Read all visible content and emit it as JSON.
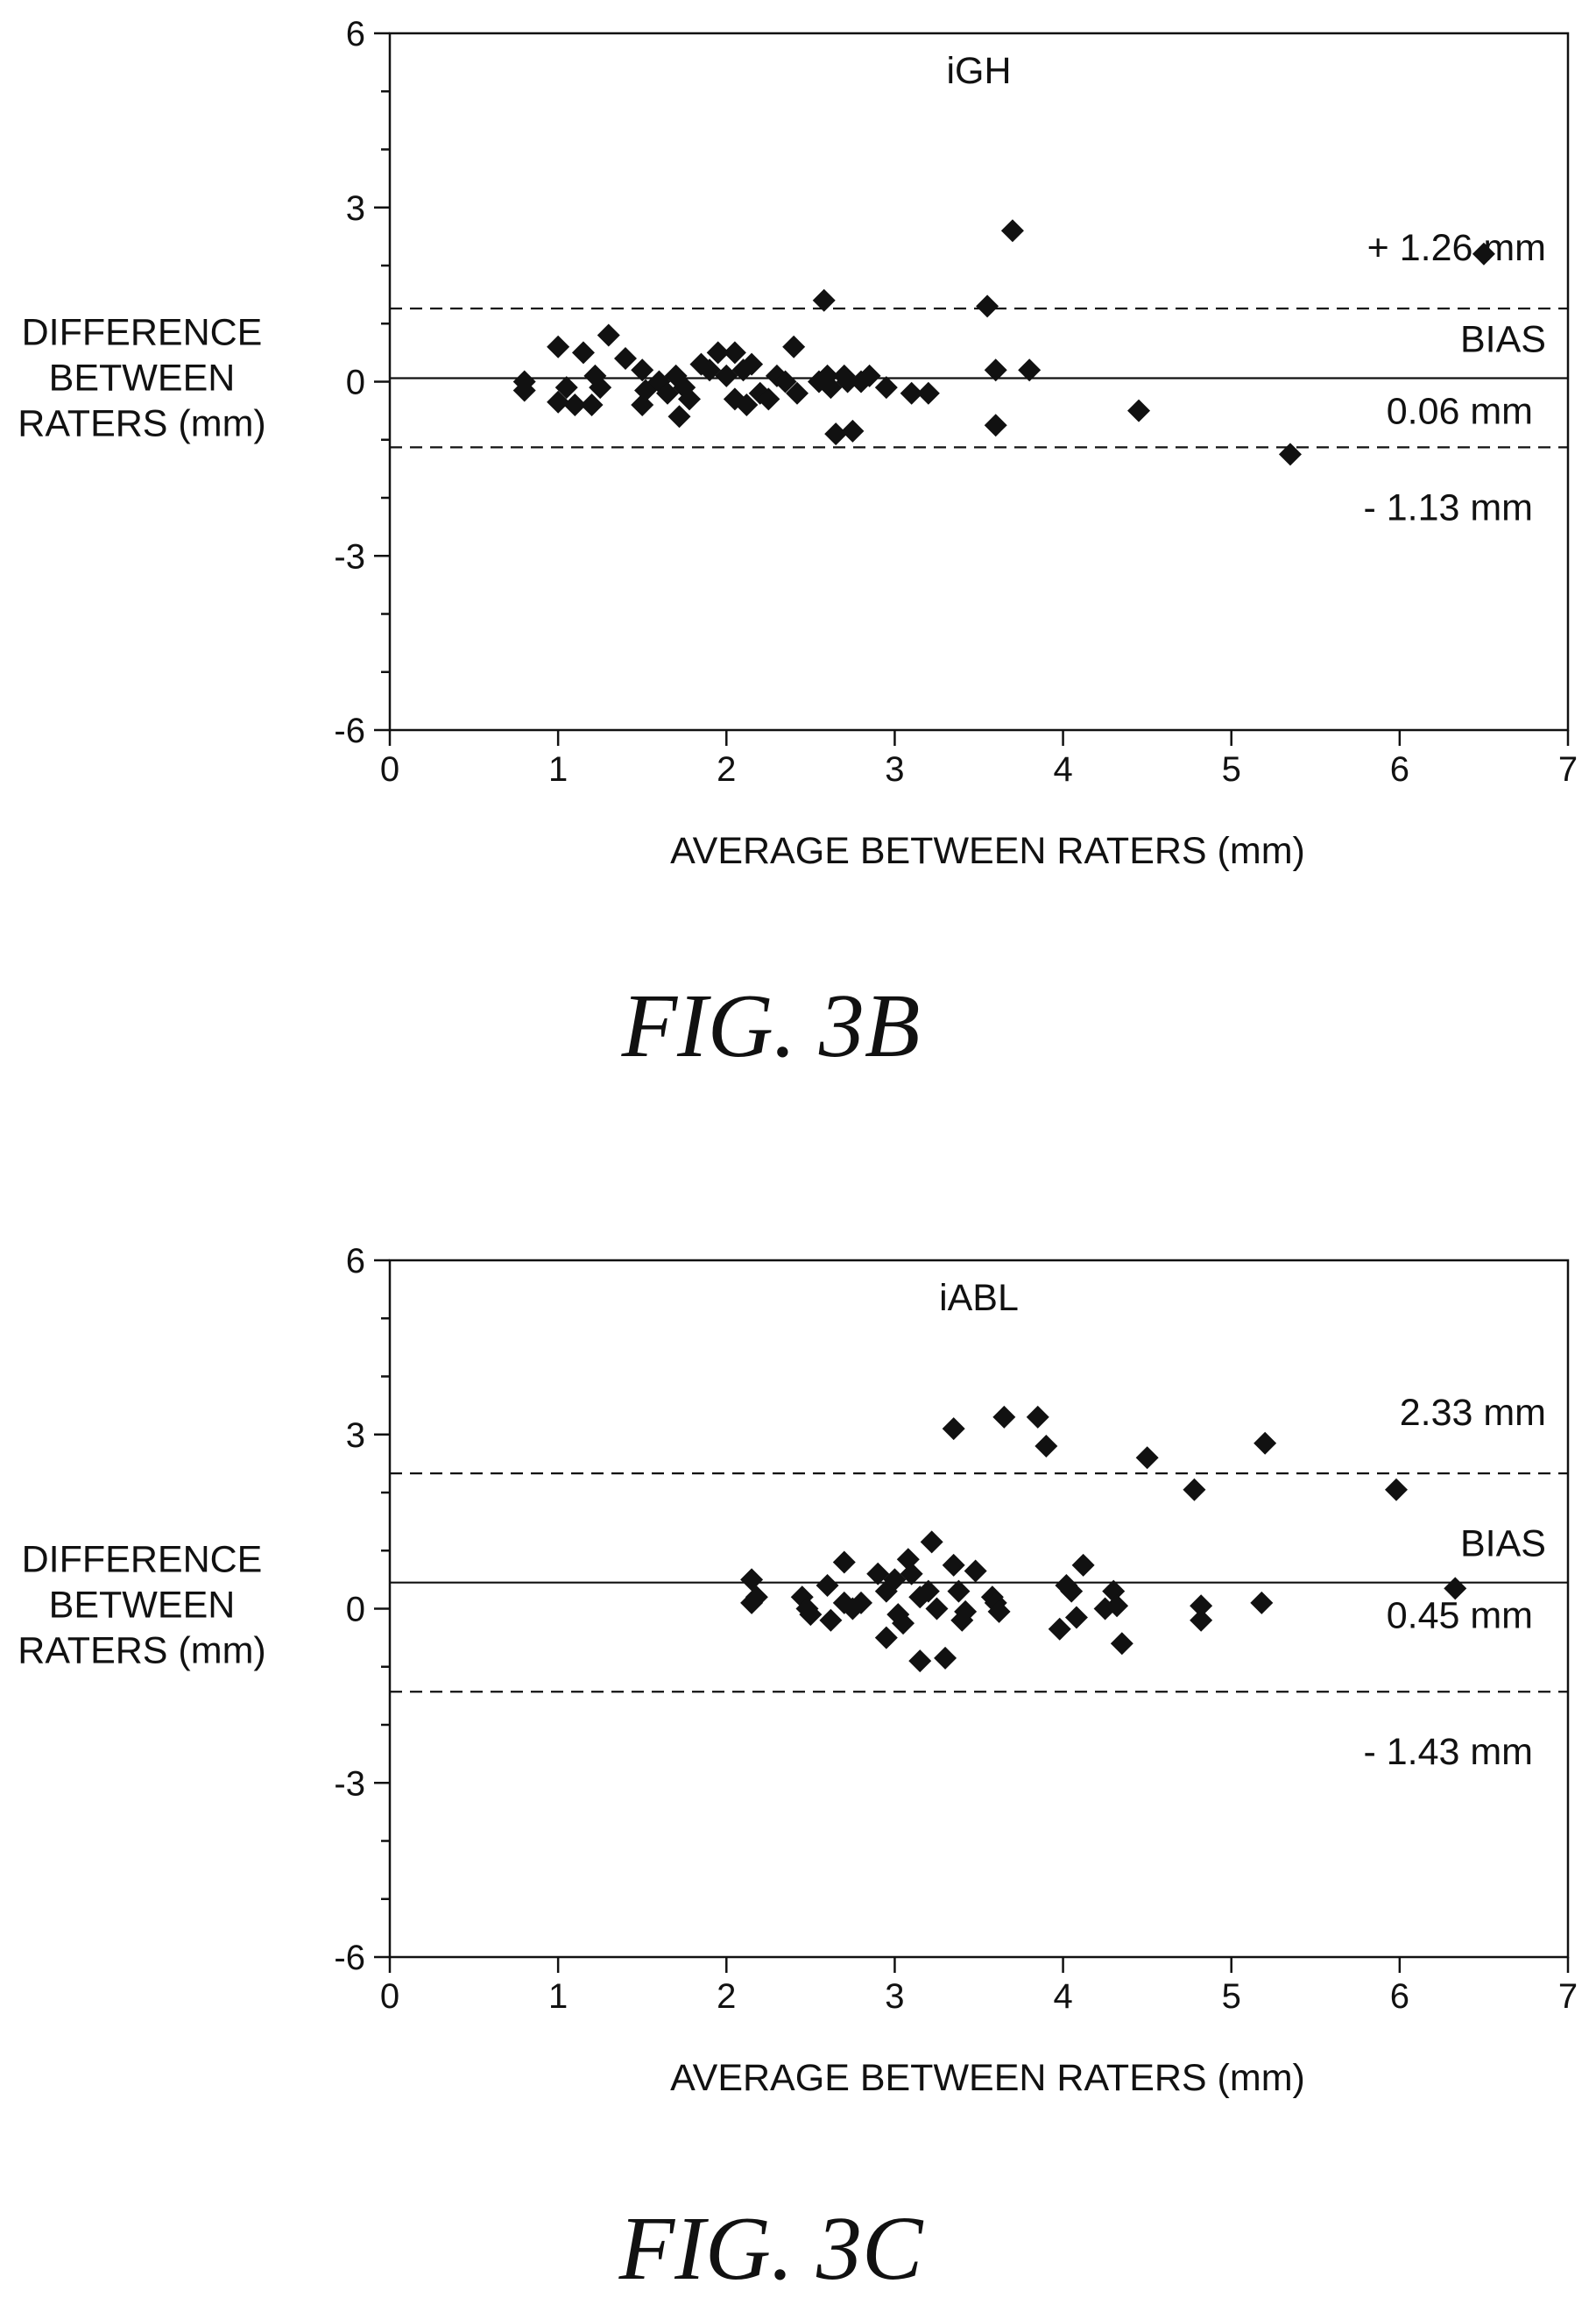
{
  "figures": [
    {
      "label": "FIG. 3B"
    },
    {
      "label": "FIG. 3C"
    }
  ],
  "chart_data": [
    {
      "type": "scatter",
      "title": "iGH",
      "xlabel": "AVERAGE BETWEEN RATERS (mm)",
      "ylabel_lines": [
        "DIFFERENCE",
        "BETWEEN",
        "RATERS (mm)"
      ],
      "xlim": [
        0,
        7
      ],
      "ylim": [
        -6,
        6
      ],
      "xticks": [
        "0",
        "1",
        "2",
        "3",
        "4",
        "5",
        "6",
        "7"
      ],
      "yticks": [
        "6",
        "3",
        "0",
        "-3",
        "-6"
      ],
      "ytick_values": [
        6,
        3,
        0,
        -3,
        -6
      ],
      "grid": false,
      "marker": "diamond",
      "bias": 0.06,
      "upper_loa": 1.26,
      "lower_loa": -1.13,
      "annotations": {
        "upper": "+ 1.26 mm",
        "bias_title": "BIAS",
        "bias": "0.06 mm",
        "lower": "- 1.13 mm"
      },
      "points": [
        [
          0.8,
          0.0
        ],
        [
          0.8,
          -0.15
        ],
        [
          1.0,
          0.6
        ],
        [
          1.0,
          -0.35
        ],
        [
          1.05,
          -0.1
        ],
        [
          1.1,
          -0.4
        ],
        [
          1.15,
          0.5
        ],
        [
          1.2,
          -0.4
        ],
        [
          1.22,
          0.1
        ],
        [
          1.25,
          -0.1
        ],
        [
          1.3,
          0.8
        ],
        [
          1.4,
          0.4
        ],
        [
          1.5,
          0.2
        ],
        [
          1.5,
          -0.4
        ],
        [
          1.52,
          -0.15
        ],
        [
          1.6,
          0.0
        ],
        [
          1.65,
          -0.2
        ],
        [
          1.7,
          0.1
        ],
        [
          1.72,
          -0.6
        ],
        [
          1.75,
          -0.1
        ],
        [
          1.78,
          -0.3
        ],
        [
          1.85,
          0.3
        ],
        [
          1.9,
          0.2
        ],
        [
          1.95,
          0.5
        ],
        [
          2.0,
          0.1
        ],
        [
          2.05,
          0.5
        ],
        [
          2.05,
          -0.3
        ],
        [
          2.1,
          0.2
        ],
        [
          2.12,
          -0.4
        ],
        [
          2.15,
          0.3
        ],
        [
          2.2,
          -0.2
        ],
        [
          2.25,
          -0.3
        ],
        [
          2.3,
          0.1
        ],
        [
          2.35,
          0.0
        ],
        [
          2.4,
          0.6
        ],
        [
          2.42,
          -0.2
        ],
        [
          2.55,
          0.0
        ],
        [
          2.58,
          1.4
        ],
        [
          2.6,
          0.1
        ],
        [
          2.62,
          -0.1
        ],
        [
          2.65,
          -0.9
        ],
        [
          2.7,
          0.1
        ],
        [
          2.72,
          0.0
        ],
        [
          2.75,
          -0.85
        ],
        [
          2.8,
          0.0
        ],
        [
          2.85,
          0.1
        ],
        [
          2.95,
          -0.1
        ],
        [
          3.1,
          -0.2
        ],
        [
          3.2,
          -0.2
        ],
        [
          3.55,
          1.3
        ],
        [
          3.6,
          0.2
        ],
        [
          3.6,
          -0.75
        ],
        [
          3.7,
          2.6
        ],
        [
          3.8,
          0.2
        ],
        [
          4.45,
          -0.5
        ],
        [
          5.35,
          -1.25
        ],
        [
          6.5,
          2.2
        ]
      ]
    },
    {
      "type": "scatter",
      "title": "iABL",
      "xlabel": "AVERAGE BETWEEN RATERS (mm)",
      "ylabel_lines": [
        "DIFFERENCE",
        "BETWEEN",
        "RATERS (mm)"
      ],
      "xlim": [
        0,
        7
      ],
      "ylim": [
        -6,
        6
      ],
      "xticks": [
        "0",
        "1",
        "2",
        "3",
        "4",
        "5",
        "6",
        "7"
      ],
      "yticks": [
        "6",
        "3",
        "0",
        "-3",
        "-6"
      ],
      "ytick_values": [
        6,
        3,
        0,
        -3,
        -6
      ],
      "grid": false,
      "marker": "diamond",
      "bias": 0.45,
      "upper_loa": 2.33,
      "lower_loa": -1.43,
      "annotations": {
        "upper": "2.33 mm",
        "bias_title": "BIAS",
        "bias": "0.45 mm",
        "lower": "- 1.43 mm"
      },
      "points": [
        [
          2.15,
          0.5
        ],
        [
          2.15,
          0.1
        ],
        [
          2.18,
          0.2
        ],
        [
          2.45,
          0.2
        ],
        [
          2.48,
          0.0
        ],
        [
          2.5,
          -0.1
        ],
        [
          2.6,
          0.4
        ],
        [
          2.62,
          -0.2
        ],
        [
          2.7,
          0.8
        ],
        [
          2.7,
          0.1
        ],
        [
          2.75,
          0.0
        ],
        [
          2.8,
          0.1
        ],
        [
          2.9,
          0.6
        ],
        [
          2.95,
          0.3
        ],
        [
          2.95,
          -0.5
        ],
        [
          3.0,
          0.5
        ],
        [
          3.02,
          -0.1
        ],
        [
          3.05,
          -0.25
        ],
        [
          3.08,
          0.85
        ],
        [
          3.1,
          0.6
        ],
        [
          3.15,
          0.2
        ],
        [
          3.15,
          -0.9
        ],
        [
          3.2,
          0.3
        ],
        [
          3.22,
          1.15
        ],
        [
          3.25,
          0.0
        ],
        [
          3.3,
          -0.85
        ],
        [
          3.35,
          3.1
        ],
        [
          3.35,
          0.75
        ],
        [
          3.38,
          0.3
        ],
        [
          3.4,
          -0.2
        ],
        [
          3.42,
          -0.05
        ],
        [
          3.48,
          0.65
        ],
        [
          3.58,
          0.2
        ],
        [
          3.6,
          0.1
        ],
        [
          3.62,
          -0.05
        ],
        [
          3.65,
          3.3
        ],
        [
          3.85,
          3.3
        ],
        [
          3.9,
          2.8
        ],
        [
          3.98,
          -0.35
        ],
        [
          4.02,
          0.4
        ],
        [
          4.05,
          0.3
        ],
        [
          4.08,
          -0.15
        ],
        [
          4.12,
          0.75
        ],
        [
          4.25,
          0.0
        ],
        [
          4.3,
          0.3
        ],
        [
          4.32,
          0.05
        ],
        [
          4.35,
          -0.6
        ],
        [
          4.5,
          2.6
        ],
        [
          4.78,
          2.05
        ],
        [
          4.82,
          -0.2
        ],
        [
          4.82,
          0.05
        ],
        [
          5.18,
          0.1
        ],
        [
          5.2,
          2.85
        ],
        [
          5.98,
          2.05
        ],
        [
          6.33,
          0.35
        ]
      ]
    }
  ]
}
